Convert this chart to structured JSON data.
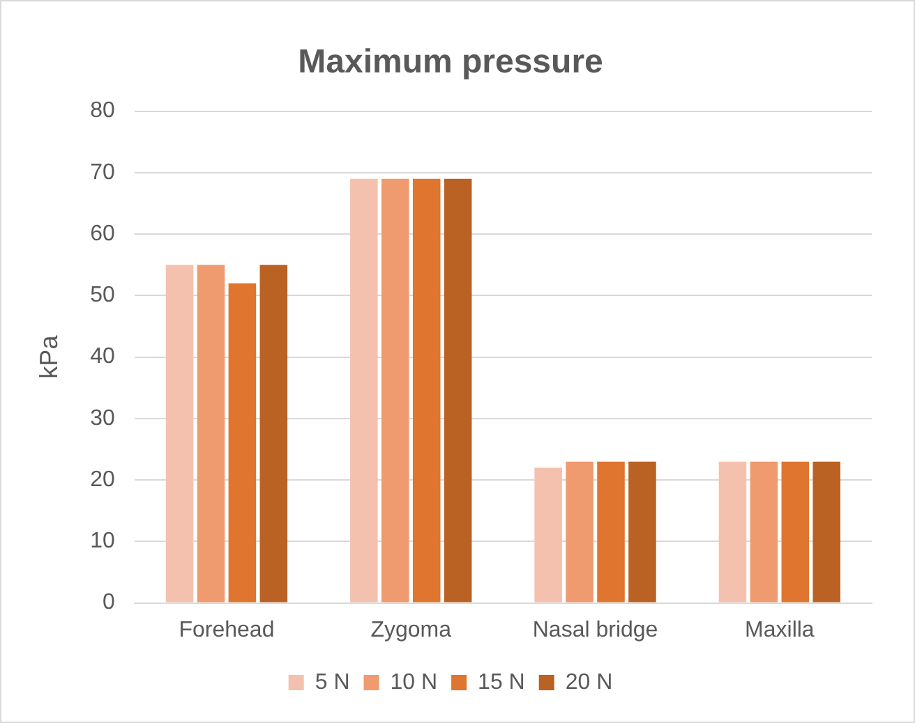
{
  "chart_data": {
    "type": "bar",
    "title": "Maximum pressure",
    "ylabel": "kPa",
    "categories": [
      "Forehead",
      "Zygoma",
      "Nasal bridge",
      "Maxilla"
    ],
    "series": [
      {
        "name": "5 N",
        "color": "#f4c1ae",
        "values": [
          55,
          69,
          22,
          23
        ]
      },
      {
        "name": "10 N",
        "color": "#f09a70",
        "values": [
          55,
          69,
          23,
          23
        ]
      },
      {
        "name": "15 N",
        "color": "#df752e",
        "values": [
          52,
          69,
          23,
          23
        ]
      },
      {
        "name": "20 N",
        "color": "#ba6124",
        "values": [
          55,
          69,
          23,
          23
        ]
      }
    ],
    "ylim": [
      0,
      80
    ],
    "yticks": [
      0,
      10,
      20,
      30,
      40,
      50,
      60,
      70,
      80
    ],
    "grid": "y",
    "legend": "bottom"
  }
}
